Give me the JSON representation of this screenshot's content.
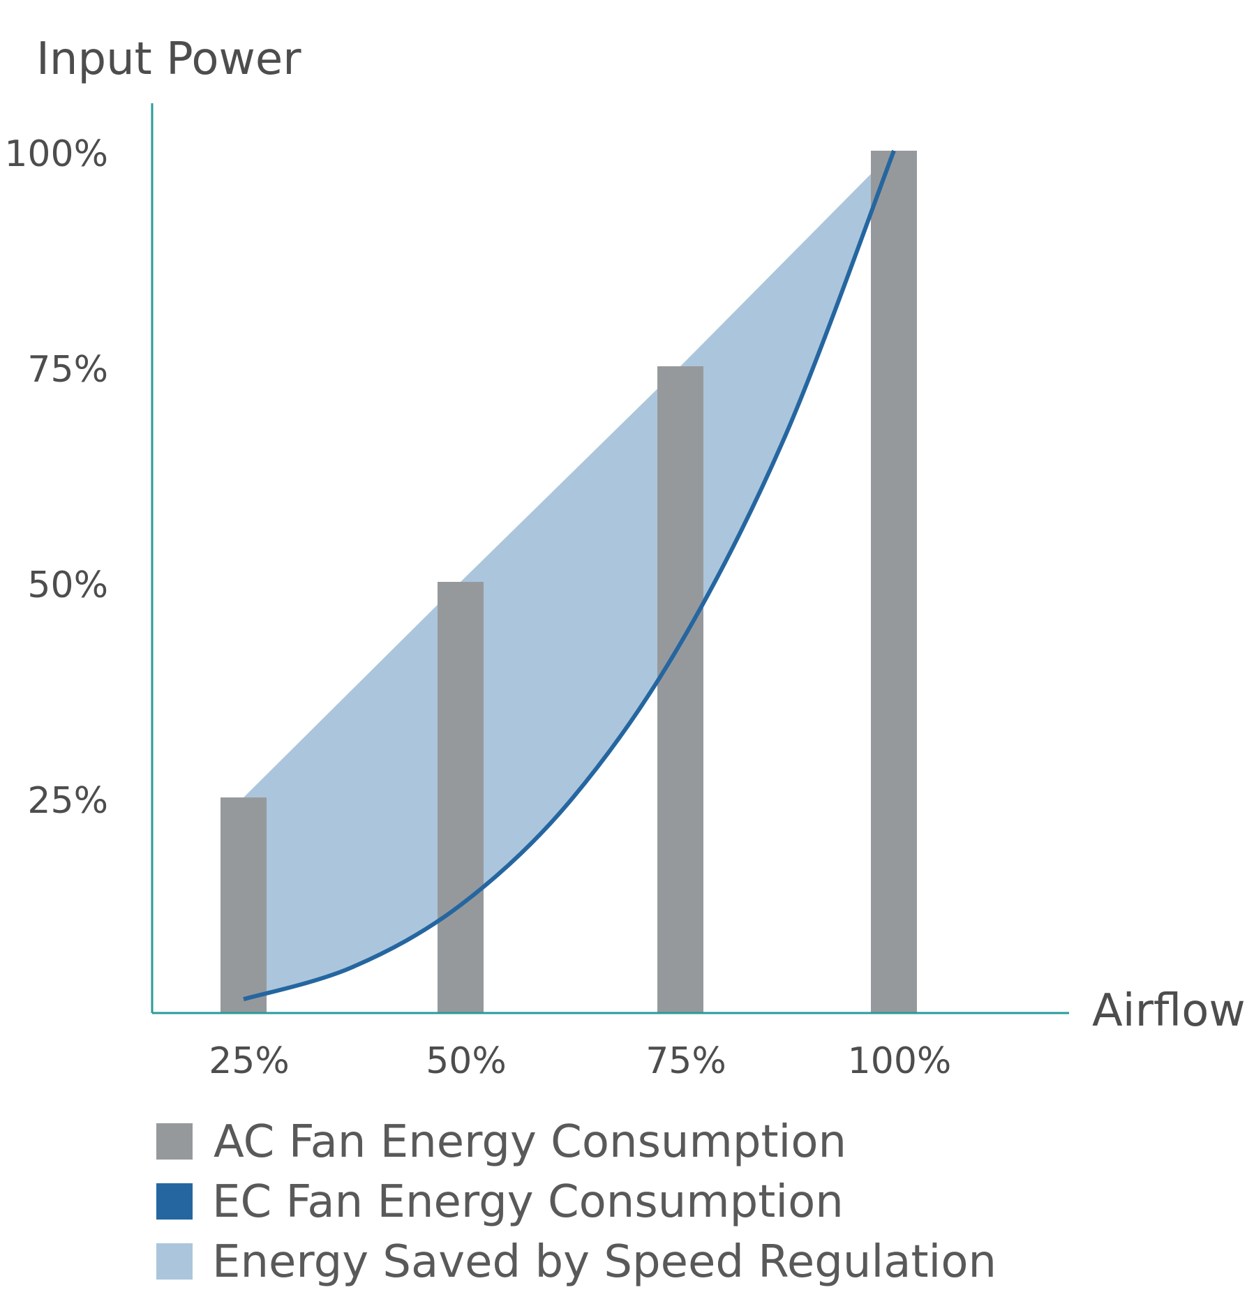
{
  "chart_data": {
    "type": "bar",
    "ylabel": "Input Power",
    "xlabel": "Airflow",
    "categories": [
      "25%",
      "50%",
      "75%",
      "100%"
    ],
    "x": [
      25,
      50,
      75,
      100
    ],
    "yticks": [
      "100%",
      "75%",
      "50%",
      "25%"
    ],
    "ytick_values": [
      100,
      75,
      50,
      25
    ],
    "ylim": [
      0,
      100
    ],
    "series": [
      {
        "name": "AC Fan Energy Consumption",
        "type": "bar",
        "color": "#96999c",
        "values": [
          25,
          50,
          75,
          100
        ]
      },
      {
        "name": "EC Fan Energy Consumption",
        "type": "line",
        "color": "#2566a0",
        "x": [
          25,
          37.5,
          50,
          62.5,
          75,
          87.5,
          100
        ],
        "values": [
          1.6,
          5.3,
          12.5,
          24.4,
          42.2,
          67,
          100
        ]
      },
      {
        "name": "Energy Saved by Speed Regulation",
        "type": "area",
        "color": "#abc6dc"
      }
    ],
    "grid": false,
    "legend_position": "bottom"
  }
}
